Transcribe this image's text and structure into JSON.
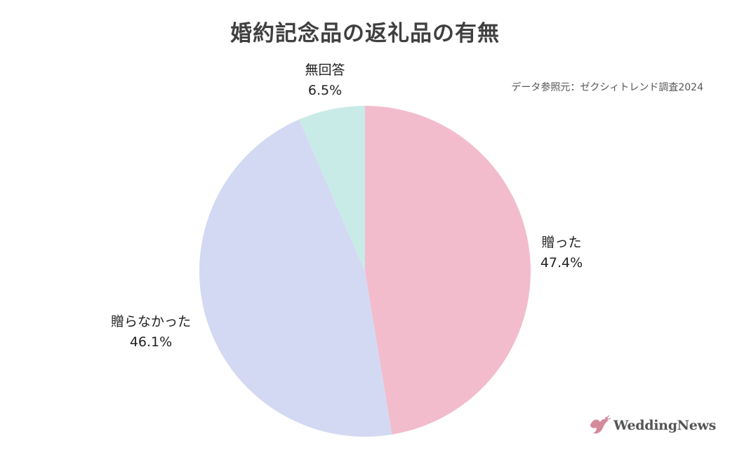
{
  "chart_data": {
    "type": "pie",
    "title": "婚約記念品の返礼品の有無",
    "source": "データ参照元：ゼクシィトレンド調査2024",
    "slices": [
      {
        "label": "贈った",
        "value": 47.4,
        "display": "47.4%",
        "color": "#f2bccd"
      },
      {
        "label": "贈らなかった",
        "value": 46.1,
        "display": "46.1%",
        "color": "#d3d9f2"
      },
      {
        "label": "無回答",
        "value": 6.5,
        "display": "6.5%",
        "color": "#c9ebe7"
      }
    ]
  },
  "logo": {
    "text": "WeddingNews",
    "accent": "#d48a9a"
  }
}
